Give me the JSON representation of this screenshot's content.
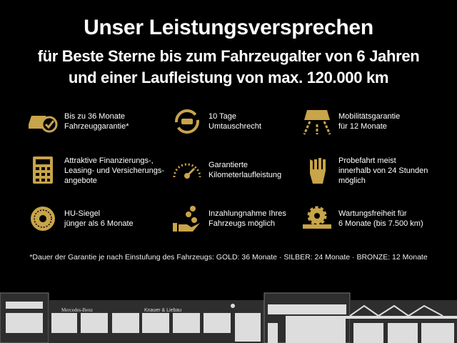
{
  "header": {
    "title": "Unser Leistungsversprechen",
    "line1": "für Beste Sterne bis zum Fahrzeugalter von 6  Jahren",
    "line2": "und einer Laufleistung von max. 120.000 km"
  },
  "accent_color": "#c8a44a",
  "features": [
    {
      "icon": "car-check-icon",
      "text": "Bis zu 36 Monate\nFahrzeuggarantie*"
    },
    {
      "icon": "car-exchange-icon",
      "text": "10 Tage\nUmtauschrecht"
    },
    {
      "icon": "car-road-icon",
      "text": "Mobilitätsgarantie\nfür 12 Monate"
    },
    {
      "icon": "calculator-icon",
      "text": "Attraktive Finanzierungs-,\nLeasing- und Versicherungs-\nangebote"
    },
    {
      "icon": "speedometer-icon",
      "text": "Garantierte\nKilometerlaufleistung"
    },
    {
      "icon": "hand-key-icon",
      "text": "Probefahrt meist\ninnerhalb von 24 Stunden\nmöglich"
    },
    {
      "icon": "seal-icon",
      "text": "HU-Siegel\njünger als 6 Monate"
    },
    {
      "icon": "hand-coins-icon",
      "text": "Inzahlungnahme Ihres\nFahrzeugs möglich"
    },
    {
      "icon": "gear-wrench-icon",
      "text": "Wartungsfreiheit für\n6 Monate (bis 7.500 km)"
    }
  ],
  "footnote": "*Dauer der Garantie je nach Einstufung des Fahrzeugs: GOLD: 36 Monate · SILBER: 24 Monate · BRONZE: 12 Monate",
  "building": {
    "sign1": "Mercedes-Benz",
    "sign2": "Knauer & Liebau"
  }
}
